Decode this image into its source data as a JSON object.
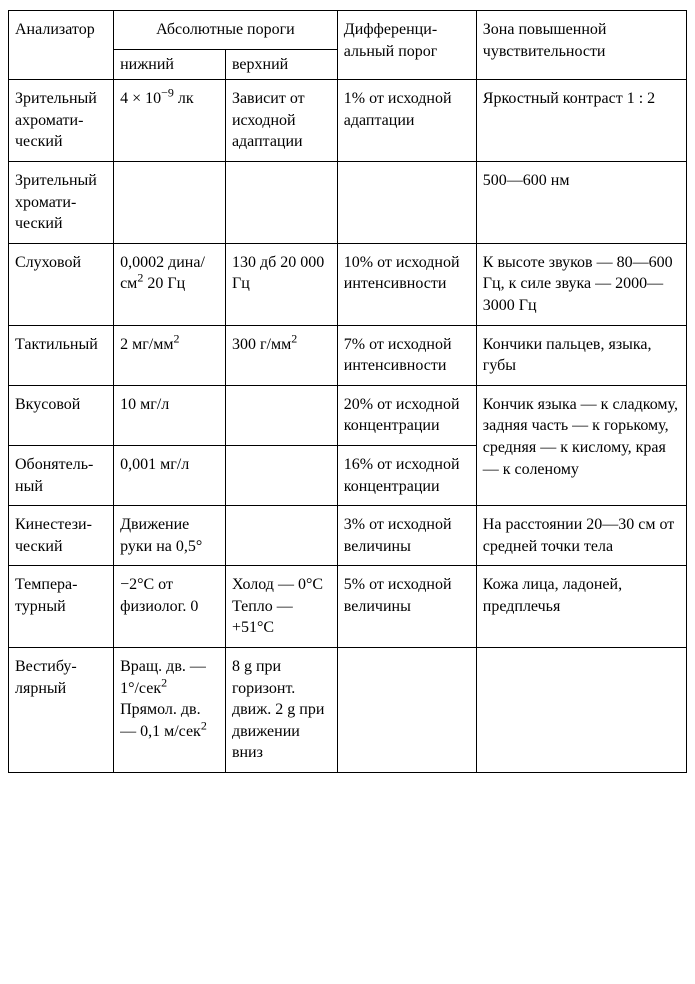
{
  "table": {
    "type": "table",
    "background_color": "#ffffff",
    "border_color": "#000000",
    "text_color": "#000000",
    "font_family": "Times New Roman, serif",
    "font_size_pt": 13,
    "column_widths_pct": [
      15.5,
      16.5,
      16.5,
      20.5,
      31.0
    ],
    "header": {
      "analyzer": "Анализатор",
      "abs_group": "Абсолютные пороги",
      "abs_lower": "нижний",
      "abs_upper": "верхний",
      "diff": "Дифференци­альный порог",
      "zone": "Зона повышенной чувствительности"
    },
    "rows": [
      {
        "analyzer": "Зрительный ахромати­ческий",
        "lower_html": "4 × 10<sup>−9</sup> лк",
        "upper": "Зависит от исходной адаптации",
        "diff": "1% от исходной адаптации",
        "zone": "Яркостный контраст 1 : 2",
        "zone_rowspan": 1
      },
      {
        "analyzer": "Зрительный хромати­ческий",
        "lower_html": "",
        "upper": "",
        "diff": "",
        "zone": "500—600 нм",
        "zone_rowspan": 1
      },
      {
        "analyzer": "Слуховой",
        "lower_html": "0,0002 дина/ см<sup>2</sup> 20 Гц",
        "upper": "130 дб 20 000 Гц",
        "diff": "10% от исходной интенсивности",
        "zone": "К высоте звуков — 80—600 Гц, к силе звука — 2000—3000 Гц",
        "zone_rowspan": 1
      },
      {
        "analyzer": "Тактильный",
        "lower_html": "2 мг/мм<sup>2</sup>",
        "upper_html": "300 г/мм<sup>2</sup>",
        "diff": "7% от исходной интенсивности",
        "zone": "Кончики пальцев, языка, губы",
        "zone_rowspan": 1
      },
      {
        "analyzer": "Вкусовой",
        "lower_html": "10 мг/л",
        "upper": "",
        "diff": "20% от исходной концентрации",
        "zone": "Кончик языка — к сладкому, задняя часть — к горькому, средняя — к кислому, края — к соленому",
        "zone_rowspan": 2
      },
      {
        "analyzer": "Обонятель­ный",
        "lower_html": "0,001 мг/л",
        "upper": "",
        "diff": "16% от исходной концентрации"
      },
      {
        "analyzer": "Кинестези­ческий",
        "lower_html": "Движение руки на 0,5°",
        "upper": "",
        "diff": "3% от исходной величины",
        "zone": "На расстоянии 20—30 см от средней точки тела",
        "zone_rowspan": 1
      },
      {
        "analyzer": "Темпера­турный",
        "lower_html": "−2°С от физиолог. 0",
        "upper": "Холод — 0°С Тепло — +51°С",
        "diff": "5% от исходной величины",
        "zone": "Кожа лица, ладоней, предплечья",
        "zone_rowspan": 1
      },
      {
        "analyzer": "Вестибу­лярный",
        "lower_html": "Вращ. дв. — 1°/сек<sup>2</sup> Прямол. дв. — 0,1 м/сек<sup>2</sup>",
        "upper": "8 g при горизонт. движ. 2 g при движении вниз",
        "diff": "",
        "zone": "",
        "zone_rowspan": 1
      }
    ]
  }
}
